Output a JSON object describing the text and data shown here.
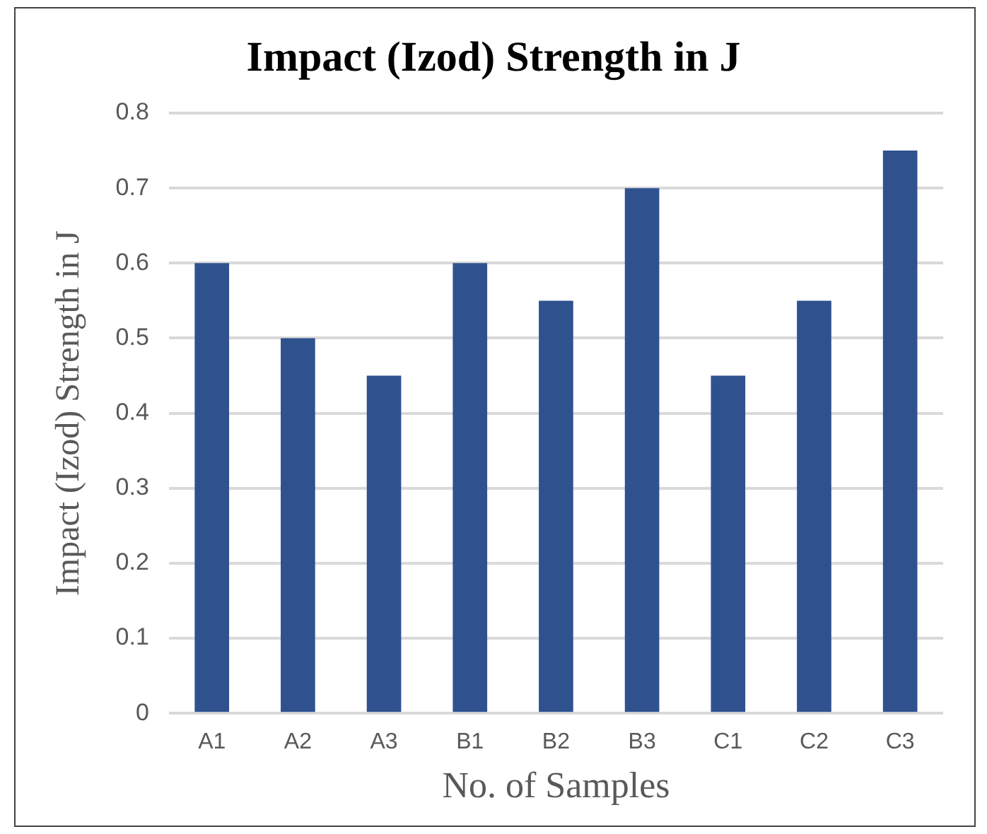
{
  "chart_data": {
    "type": "bar",
    "title": "Impact (Izod) Strength in J",
    "xlabel": "No. of Samples",
    "ylabel": "Impact (Izod) Strength in J",
    "categories": [
      "A1",
      "A2",
      "A3",
      "B1",
      "B2",
      "B3",
      "C1",
      "C2",
      "C3"
    ],
    "values": [
      0.6,
      0.5,
      0.45,
      0.6,
      0.55,
      0.7,
      0.45,
      0.55,
      0.75
    ],
    "color": "#2f528f",
    "ylim": [
      0,
      0.8
    ],
    "yticks": [
      0,
      0.1,
      0.2,
      0.3,
      0.4,
      0.5,
      0.6,
      0.7,
      0.8
    ],
    "grid": "y"
  }
}
